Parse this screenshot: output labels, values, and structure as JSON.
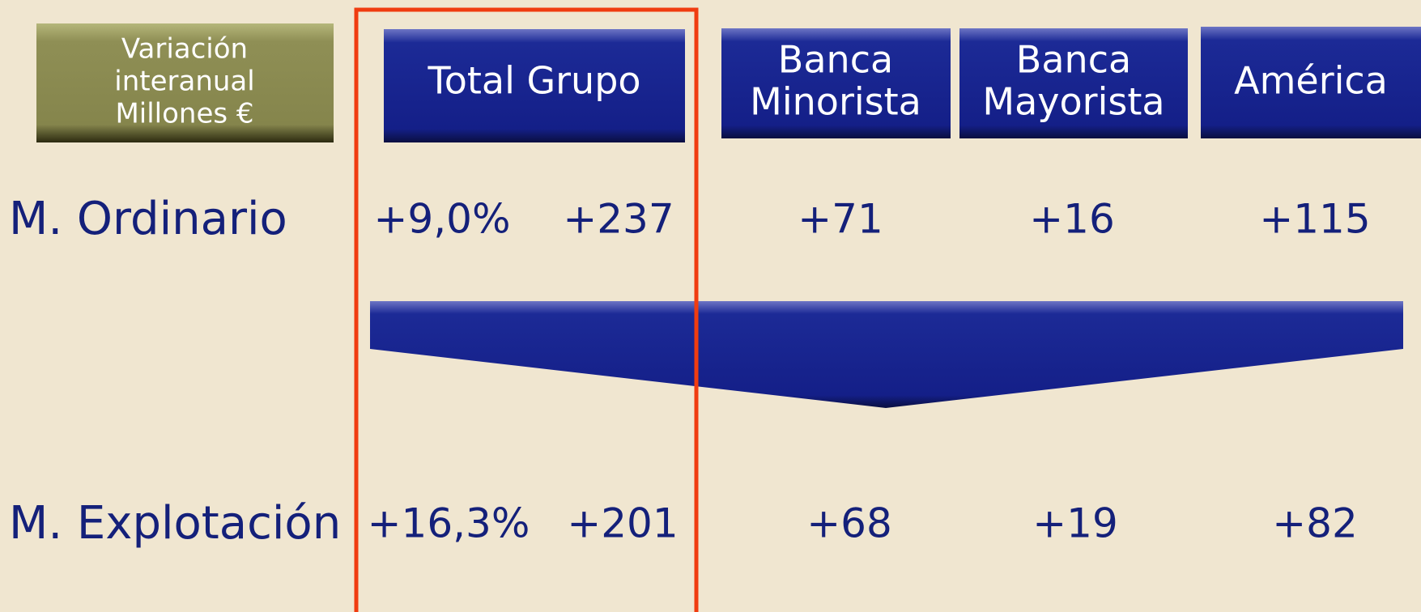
{
  "header": {
    "label": [
      "Variación",
      "interanual",
      "Millones €"
    ]
  },
  "columns": [
    [
      "Total Grupo"
    ],
    [
      "Banca",
      "Minorista"
    ],
    [
      "Banca",
      "Mayorista"
    ],
    [
      "América"
    ]
  ],
  "rows": [
    {
      "label": "M. Ordinario",
      "values": [
        "+9,0%",
        "+237",
        "+71",
        "+16",
        "+115"
      ]
    },
    {
      "label": "M. Explotación",
      "values": [
        "+16,3%",
        "+201",
        "+68",
        "+19",
        "+82"
      ]
    }
  ]
}
